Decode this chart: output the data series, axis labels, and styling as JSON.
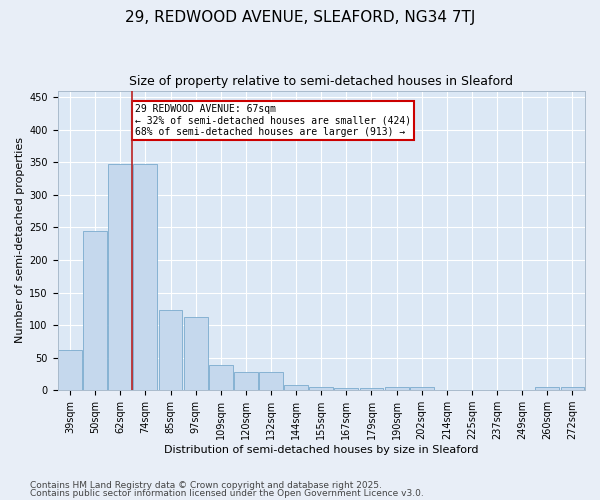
{
  "title": "29, REDWOOD AVENUE, SLEAFORD, NG34 7TJ",
  "subtitle": "Size of property relative to semi-detached houses in Sleaford",
  "xlabel": "Distribution of semi-detached houses by size in Sleaford",
  "ylabel": "Number of semi-detached properties",
  "categories": [
    "39sqm",
    "50sqm",
    "62sqm",
    "74sqm",
    "85sqm",
    "97sqm",
    "109sqm",
    "120sqm",
    "132sqm",
    "144sqm",
    "155sqm",
    "167sqm",
    "179sqm",
    "190sqm",
    "202sqm",
    "214sqm",
    "225sqm",
    "237sqm",
    "249sqm",
    "260sqm",
    "272sqm"
  ],
  "values": [
    62,
    245,
    348,
    348,
    123,
    113,
    38,
    28,
    28,
    8,
    5,
    3,
    3,
    5,
    5,
    0,
    0,
    0,
    0,
    5,
    5
  ],
  "bar_color": "#c5d8ed",
  "bar_edge_color": "#7aabce",
  "vline_x_index": 2,
  "vline_color": "#bb2222",
  "annotation_title": "29 REDWOOD AVENUE: 67sqm",
  "annotation_line1": "← 32% of semi-detached houses are smaller (424)",
  "annotation_line2": "68% of semi-detached houses are larger (913) →",
  "annotation_box_color": "#ffffff",
  "annotation_box_edge_color": "#cc0000",
  "ylim": [
    0,
    460
  ],
  "footnote1": "Contains HM Land Registry data © Crown copyright and database right 2025.",
  "footnote2": "Contains public sector information licensed under the Open Government Licence v3.0.",
  "bg_color": "#e8eef7",
  "plot_bg_color": "#dce8f5",
  "title_fontsize": 11,
  "subtitle_fontsize": 9,
  "axis_label_fontsize": 8,
  "tick_fontsize": 7,
  "footnote_fontsize": 6.5
}
